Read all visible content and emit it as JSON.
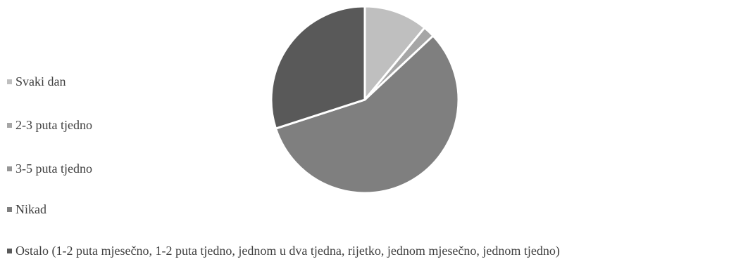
{
  "chart_data": {
    "type": "pie",
    "title": "",
    "legend_position": "left",
    "slices": [
      {
        "label": "Svaki dan",
        "value": 11,
        "color": "#bfbfbf"
      },
      {
        "label": "2-3 puta tjedno",
        "value": 2,
        "color": "#a6a6a6"
      },
      {
        "label": "3-5 puta tjedno",
        "value": 0,
        "color": "#969696"
      },
      {
        "label": "Nikad",
        "value": 57,
        "color": "#7f7f7f"
      },
      {
        "label": "Ostalo (1-2 puta mjesečno, 1-2 puta tjedno, jednom u dva tjedna, rijetko, jednom mjesečno, jednom tjedno)",
        "value": 30,
        "color": "#595959"
      }
    ]
  },
  "legend": {
    "items": [
      {
        "label": "Svaki dan"
      },
      {
        "label": "2-3 puta tjedno"
      },
      {
        "label": "3-5 puta tjedno"
      },
      {
        "label": "Nikad"
      },
      {
        "label": "Ostalo (1-2 puta mjesečno, 1-2 puta tjedno, jednom u dva tjedna, rijetko, jednom mjesečno, jednom tjedno)"
      }
    ]
  }
}
